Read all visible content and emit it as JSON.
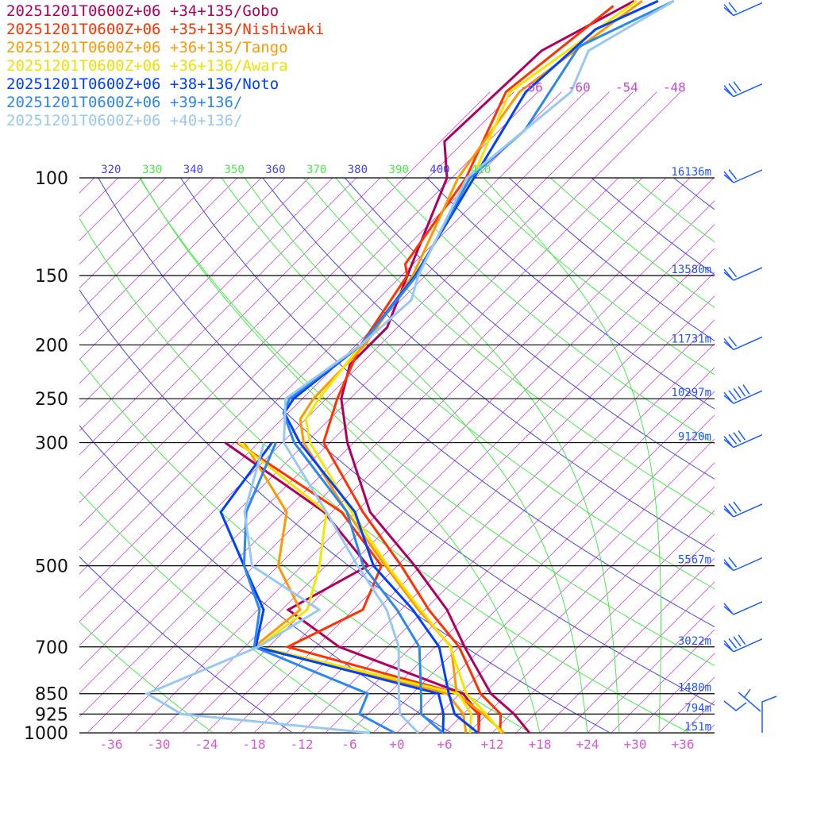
{
  "legend": [
    {
      "label": "20251201T0600Z+06 +34+135/Gobo",
      "color": "#b0005f"
    },
    {
      "label": "20251201T0600Z+06 +35+135/Nishiwaki",
      "color": "#ff3300"
    },
    {
      "label": "20251201T0600Z+06 +36+135/Tango",
      "color": "#ff9900"
    },
    {
      "label": "20251201T0600Z+06 +36+136/Awara",
      "color": "#f0e000"
    },
    {
      "label": "20251201T0600Z+06 +38+136/Noto",
      "color": "#0040ff"
    },
    {
      "label": "20251201T0600Z+06 +39+136/",
      "color": "#2a88ee"
    },
    {
      "label": "20251201T0600Z+06 +40+136/",
      "color": "#99c8f5"
    }
  ],
  "chart_data": {
    "type": "line",
    "subtype": "skew-T log-p",
    "x_axis": {
      "unit": "°C",
      "ticks": [
        "-36",
        "-30",
        "-24",
        "-18",
        "-12",
        "-6",
        "+0",
        "+6",
        "+12",
        "+18",
        "+24",
        "+30",
        "+36"
      ],
      "range": [
        -40,
        40
      ]
    },
    "y_axis": {
      "unit": "hPa",
      "scale": "log",
      "range": [
        1000,
        100
      ]
    },
    "pressure_levels": [
      {
        "p": 100,
        "label": "100",
        "height": "16136m"
      },
      {
        "p": 150,
        "label": "150",
        "height": "13580m"
      },
      {
        "p": 200,
        "label": "200",
        "height": "11731m"
      },
      {
        "p": 250,
        "label": "250",
        "height": "10297m"
      },
      {
        "p": 300,
        "label": "300",
        "height": "9120m"
      },
      {
        "p": 500,
        "label": "500",
        "height": "5567m"
      },
      {
        "p": 700,
        "label": "700",
        "height": "3022m"
      },
      {
        "p": 850,
        "label": "850",
        "height": "1480m"
      },
      {
        "p": 925,
        "label": "925",
        "height": "794m"
      },
      {
        "p": 1000,
        "label": "1000",
        "height": "151m"
      }
    ],
    "isotherm_labels": [
      "-66",
      "-60",
      "-54",
      "-48"
    ],
    "theta_labels": [
      "320",
      "330",
      "340",
      "350",
      "360",
      "370",
      "380",
      "390",
      "400",
      "410"
    ],
    "colors": {
      "isotherm": "#cc44dd",
      "theta_even": "#4444ee",
      "theta_odd": "#44ee44",
      "height_label": "#2255ee",
      "tick_label": "#dd55dd",
      "wind": "#1a5cff"
    },
    "series": [
      {
        "name": "Gobo",
        "color": "#b0005f",
        "temperature": [
          [
            1000,
            16.7
          ],
          [
            925,
            12.4
          ],
          [
            850,
            6.9
          ],
          [
            700,
            -2.3
          ],
          [
            600,
            -9.2
          ],
          [
            500,
            -18.8
          ],
          [
            400,
            -31.2
          ],
          [
            300,
            -42.8
          ],
          [
            250,
            -49.1
          ],
          [
            217,
            -52.3
          ],
          [
            186,
            -52.3
          ],
          [
            145,
            -56.9
          ],
          [
            100,
            -63.6
          ],
          [
            86,
            -68.5
          ],
          [
            59,
            -67.7
          ],
          [
            48,
            -62.3
          ]
        ],
        "dewpoint": [
          [
            1000,
            10.3
          ],
          [
            925,
            8
          ],
          [
            850,
            3.4
          ],
          [
            700,
            -18.1
          ],
          [
            600,
            -29.2
          ],
          [
            500,
            -24.7
          ],
          [
            400,
            -37
          ],
          [
            300,
            -58.2
          ]
        ]
      },
      {
        "name": "Nishiwaki",
        "color": "#ff3300",
        "temperature": [
          [
            1000,
            13
          ],
          [
            925,
            10.7
          ],
          [
            850,
            5.6
          ],
          [
            700,
            -3
          ],
          [
            600,
            -11.5
          ],
          [
            500,
            -20.5
          ],
          [
            400,
            -32.1
          ],
          [
            300,
            -45.8
          ],
          [
            250,
            -49.6
          ],
          [
            200,
            -53.4
          ],
          [
            150,
            -56.3
          ],
          [
            143,
            -58
          ],
          [
            100,
            -61.2
          ],
          [
            70,
            -67
          ],
          [
            49,
            -64.3
          ]
        ],
        "dewpoint": [
          [
            1000,
            10.3
          ],
          [
            925,
            7.9
          ],
          [
            850,
            2.8
          ],
          [
            700,
            -24.6
          ],
          [
            600,
            -19.8
          ],
          [
            500,
            -23
          ],
          [
            400,
            -34.8
          ],
          [
            300,
            -56.7
          ]
        ]
      },
      {
        "name": "Tango",
        "color": "#ff9900",
        "temperature": [
          [
            1000,
            13.5
          ],
          [
            925,
            8.5
          ],
          [
            850,
            2.6
          ],
          [
            700,
            -4
          ],
          [
            600,
            -12.8
          ],
          [
            500,
            -22.5
          ],
          [
            400,
            -34.1
          ],
          [
            300,
            -48.3
          ],
          [
            272,
            -51.7
          ],
          [
            250,
            -52.6
          ],
          [
            200,
            -52.9
          ],
          [
            150,
            -55.6
          ],
          [
            100,
            -62.2
          ],
          [
            70,
            -65.3
          ],
          [
            48,
            -61.3
          ]
        ],
        "dewpoint": [
          [
            1000,
            8.7
          ],
          [
            925,
            6
          ],
          [
            850,
            1.4
          ],
          [
            700,
            -28.8
          ],
          [
            600,
            -27.7
          ],
          [
            500,
            -36
          ],
          [
            400,
            -41.7
          ],
          [
            300,
            -55.8
          ]
        ]
      },
      {
        "name": "Awara",
        "color": "#f5e600",
        "temperature": [
          [
            1000,
            13.2
          ],
          [
            925,
            8.9
          ],
          [
            850,
            3.8
          ],
          [
            700,
            -4.1
          ],
          [
            600,
            -12.5
          ],
          [
            500,
            -22.2
          ],
          [
            400,
            -33.5
          ],
          [
            300,
            -47.5
          ],
          [
            272,
            -51
          ],
          [
            250,
            -51.9
          ],
          [
            200,
            -53.4
          ],
          [
            150,
            -55.3
          ],
          [
            100,
            -60.4
          ],
          [
            70,
            -66.5
          ],
          [
            48,
            -62
          ]
        ],
        "dewpoint": [
          [
            1000,
            9.2
          ],
          [
            925,
            7
          ],
          [
            850,
            2.8
          ],
          [
            700,
            -28.3
          ],
          [
            600,
            -26.8
          ],
          [
            500,
            -30.8
          ],
          [
            400,
            -36.7
          ],
          [
            300,
            -56.5
          ]
        ]
      },
      {
        "name": "Noto",
        "color": "#0040ff",
        "temperature": [
          [
            1000,
            10.2
          ],
          [
            925,
            4.9
          ],
          [
            850,
            1.6
          ],
          [
            700,
            -5.5
          ],
          [
            600,
            -13.5
          ],
          [
            500,
            -24
          ],
          [
            400,
            -33.1
          ],
          [
            300,
            -48.8
          ],
          [
            265,
            -54.5
          ],
          [
            250,
            -55.1
          ],
          [
            200,
            -53.4
          ],
          [
            150,
            -55.3
          ],
          [
            100,
            -60.2
          ],
          [
            70,
            -64.5
          ],
          [
            54,
            -63.6
          ],
          [
            48,
            -59.3
          ]
        ],
        "dewpoint": [
          [
            1000,
            5.8
          ],
          [
            925,
            3.5
          ],
          [
            850,
            0.3
          ],
          [
            700,
            -28.6
          ],
          [
            600,
            -32.3
          ],
          [
            500,
            -40.3
          ],
          [
            400,
            -50
          ],
          [
            300,
            -52.3
          ]
        ]
      },
      {
        "name": "+39+136",
        "color": "#2a88ee",
        "temperature": [
          [
            1000,
            5.8
          ],
          [
            925,
            0.7
          ],
          [
            850,
            -1.9
          ],
          [
            700,
            -8
          ],
          [
            600,
            -15.5
          ],
          [
            500,
            -25.3
          ],
          [
            400,
            -34.1
          ],
          [
            300,
            -49.5
          ],
          [
            265,
            -54.6
          ],
          [
            250,
            -55.6
          ],
          [
            200,
            -53.4
          ],
          [
            150,
            -55.1
          ],
          [
            100,
            -60.7
          ],
          [
            82,
            -59.8
          ],
          [
            58,
            -63.5
          ],
          [
            48,
            -57.3
          ]
        ],
        "dewpoint": [
          [
            1000,
            -0.3
          ],
          [
            925,
            -7.1
          ],
          [
            850,
            -8.6
          ],
          [
            700,
            -28.8
          ],
          [
            600,
            -32.8
          ],
          [
            500,
            -40.3
          ],
          [
            400,
            -46.8
          ],
          [
            300,
            -51.8
          ]
        ]
      },
      {
        "name": "+40+136",
        "color": "#99c8f5",
        "temperature": [
          [
            1000,
            2.7
          ],
          [
            925,
            -2
          ],
          [
            850,
            -4.7
          ],
          [
            700,
            -10.6
          ],
          [
            600,
            -16.8
          ],
          [
            500,
            -26
          ],
          [
            400,
            -36.7
          ],
          [
            300,
            -50.8
          ],
          [
            250,
            -56.1
          ],
          [
            200,
            -53.4
          ],
          [
            166,
            -52.7
          ],
          [
            150,
            -54.9
          ],
          [
            100,
            -61.1
          ],
          [
            70,
            -58.8
          ],
          [
            59,
            -61.8
          ],
          [
            48,
            -57.3
          ]
        ],
        "dewpoint": [
          [
            1000,
            -3.4
          ],
          [
            925,
            -29.5
          ],
          [
            850,
            -36.4
          ],
          [
            700,
            -28.3
          ],
          [
            600,
            -25.3
          ],
          [
            500,
            -39.3
          ],
          [
            400,
            -47
          ],
          [
            300,
            -53.3
          ]
        ]
      }
    ],
    "wind_barbs": [
      {
        "p": 50,
        "barbs": 2
      },
      {
        "p": 70,
        "barbs": 3
      },
      {
        "p": 100,
        "barbs": 2
      },
      {
        "p": 150,
        "barbs": 2
      },
      {
        "p": 200,
        "barbs": 2
      },
      {
        "p": 250,
        "barbs": 5
      },
      {
        "p": 300,
        "barbs": 4
      },
      {
        "p": 400,
        "barbs": 3
      },
      {
        "p": 500,
        "barbs": 2
      },
      {
        "p": 600,
        "barbs": 1
      },
      {
        "p": 700,
        "barbs": 4
      }
    ]
  }
}
